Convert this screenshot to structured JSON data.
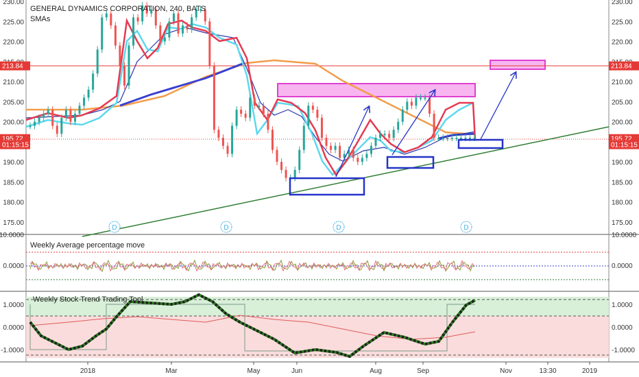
{
  "main": {
    "title": "GENERAL DYNAMICS CORPORATION, 240, BATS",
    "indicator": "SMAs",
    "y_ticks": [
      "230.00",
      "225.00",
      "220.00",
      "215.00",
      "210.00",
      "205.00",
      "200.00",
      "195.00",
      "190.00",
      "185.00",
      "180.00",
      "175.00"
    ],
    "price_labels": [
      {
        "text": "213.84",
        "value": 213.84,
        "color": "#e53935"
      },
      {
        "text": "195.72",
        "value": 195.72,
        "color": "#e53935"
      },
      {
        "text": "01:15:15",
        "value": 194.2,
        "color": "#e53935"
      }
    ],
    "dividend_marker": "D"
  },
  "x_ticks": [
    "2018",
    "Mar",
    "May",
    "Jun",
    "Aug",
    "Sep",
    "Nov",
    "13:30",
    "2019"
  ],
  "panel2": {
    "title": "Weekly Average percentage move",
    "y_ticks": [
      "10.0000",
      "0.0000"
    ]
  },
  "panel3": {
    "title": "Weekly Stock Trend Trading Tool",
    "y_ticks": [
      "1.0000",
      "0.0000",
      "-1.0000"
    ]
  },
  "chart_data": {
    "type": "line",
    "title": "GENERAL DYNAMICS CORPORATION, 240, BATS",
    "y_range": [
      171,
      231
    ],
    "y_scale_ticks": [
      175,
      180,
      185,
      190,
      195,
      200,
      205,
      210,
      215,
      220,
      225,
      230
    ],
    "series": [
      {
        "name": "price",
        "x": [
          0,
          4,
          8,
          12,
          15,
          18,
          22,
          26,
          30,
          34,
          38,
          42,
          46,
          50,
          54,
          58,
          62,
          64,
          66,
          68,
          70,
          72,
          74,
          76,
          78,
          80,
          82,
          84,
          86,
          88,
          90,
          92,
          95,
          98,
          100,
          102,
          104,
          106,
          108,
          110,
          112,
          114,
          116,
          118,
          120,
          122,
          124,
          126,
          128,
          130,
          132,
          134,
          136,
          138,
          140,
          142,
          144,
          146,
          148,
          150,
          152,
          154,
          156,
          158,
          160,
          162,
          164,
          166,
          168,
          170,
          172,
          174,
          176,
          178,
          180,
          182,
          184,
          186,
          188,
          190,
          192,
          194,
          196,
          198,
          200,
          202,
          204,
          206,
          208,
          210,
          212,
          214,
          216,
          218,
          220,
          222,
          224,
          226,
          228,
          230
        ],
        "values": [
          199,
          200,
          201,
          202,
          203,
          199,
          197,
          201,
          203,
          200,
          202,
          204,
          206,
          208,
          212,
          218,
          226,
          227,
          224,
          219,
          214,
          209,
          219,
          226,
          225,
          229,
          227,
          228,
          224,
          220,
          221,
          225,
          227,
          222,
          224,
          223,
          226,
          228,
          228,
          225,
          214,
          198,
          196,
          194,
          192,
          199,
          203,
          202,
          201,
          206,
          204,
          204,
          202,
          198,
          193,
          190,
          188,
          186,
          186,
          188,
          193,
          199,
          204,
          203,
          201,
          196,
          194,
          193,
          194,
          191,
          192,
          193,
          191,
          190,
          191,
          192,
          194,
          196,
          197,
          197,
          196,
          198,
          200,
          203,
          205,
          204,
          206,
          206,
          206,
          202,
          196,
          196,
          196,
          196,
          196,
          196,
          196,
          196,
          196,
          196
        ]
      }
    ],
    "horizontal_lines": [
      213.84,
      195.72
    ],
    "annotations": [
      "pink zone ~207-209",
      "blue boxes",
      "green trend line",
      "arrows"
    ]
  }
}
